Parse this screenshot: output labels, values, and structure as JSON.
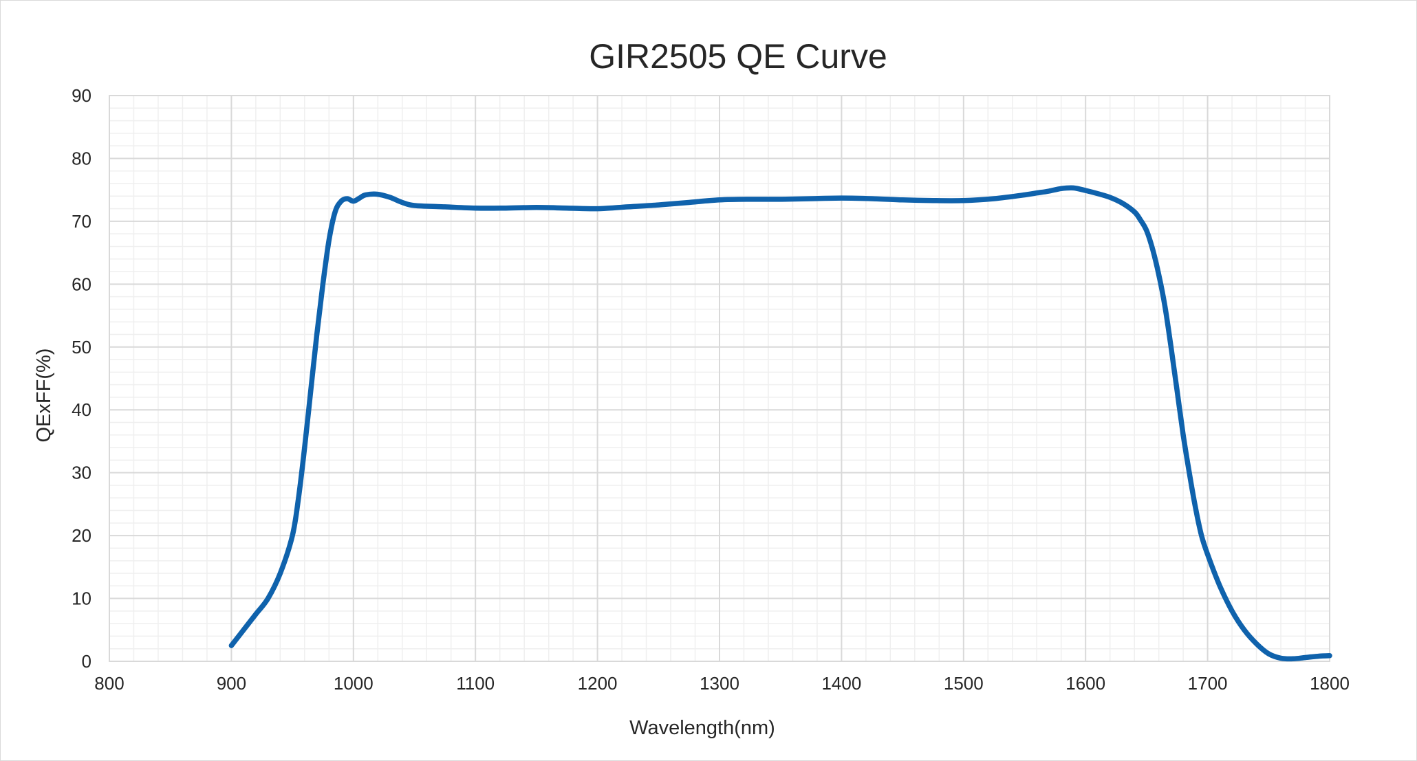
{
  "chart_data": {
    "type": "line",
    "title": "GIR2505 QE Curve",
    "xlabel": "Wavelength(nm)",
    "ylabel": "QExFF(%)",
    "xlim": [
      800,
      1800
    ],
    "ylim": [
      0,
      90
    ],
    "x_ticks": [
      800,
      900,
      1000,
      1100,
      1200,
      1300,
      1400,
      1500,
      1600,
      1700,
      1800
    ],
    "y_ticks": [
      0,
      10,
      20,
      30,
      40,
      50,
      60,
      70,
      80,
      90
    ],
    "x_minor_step": 20,
    "y_minor_step": 2,
    "grid": true,
    "legend": "none",
    "series_color": "#0f62ac",
    "series": [
      {
        "x": [
          900,
          910,
          920,
          930,
          940,
          950,
          955,
          960,
          965,
          970,
          975,
          980,
          985,
          990,
          995,
          1000,
          1005,
          1010,
          1020,
          1030,
          1040,
          1050,
          1075,
          1100,
          1125,
          1150,
          1175,
          1200,
          1225,
          1250,
          1275,
          1300,
          1325,
          1350,
          1375,
          1400,
          1425,
          1450,
          1475,
          1500,
          1525,
          1550,
          1560,
          1570,
          1580,
          1590,
          1600,
          1610,
          1620,
          1630,
          1640,
          1645,
          1650,
          1655,
          1660,
          1665,
          1670,
          1675,
          1680,
          1685,
          1690,
          1695,
          1700,
          1710,
          1720,
          1730,
          1740,
          1750,
          1760,
          1770,
          1780,
          1790,
          1800
        ],
        "y": [
          2.5,
          5,
          7.5,
          10,
          14,
          20,
          26,
          34,
          43,
          52,
          60,
          67,
          71.5,
          73.2,
          73.6,
          73.2,
          73.7,
          74.2,
          74.3,
          73.8,
          73.0,
          72.5,
          72.3,
          72.1,
          72.1,
          72.2,
          72.1,
          72.0,
          72.3,
          72.6,
          73.0,
          73.4,
          73.5,
          73.5,
          73.6,
          73.7,
          73.6,
          73.4,
          73.3,
          73.3,
          73.6,
          74.2,
          74.5,
          74.8,
          75.2,
          75.3,
          74.9,
          74.4,
          73.8,
          72.9,
          71.5,
          70.2,
          68.5,
          65.5,
          61.5,
          56.5,
          50.0,
          43.0,
          36.0,
          30.0,
          24.5,
          20.0,
          17.0,
          12.0,
          8.0,
          5.0,
          2.8,
          1.2,
          0.5,
          0.4,
          0.6,
          0.8,
          0.9
        ]
      }
    ]
  }
}
